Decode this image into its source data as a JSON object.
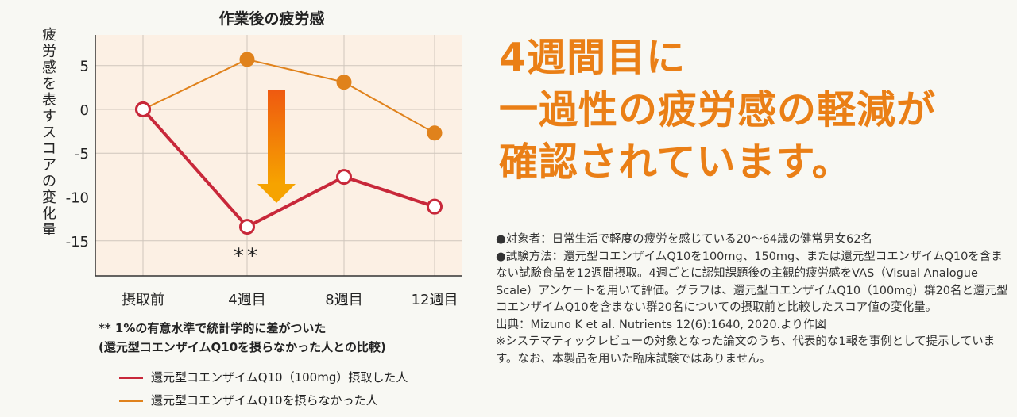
{
  "colors": {
    "accent": "#ea7f16",
    "series_q10": "#c8283a",
    "series_control": "#e0821c",
    "plot_bg": "#fcf0e4",
    "arrow_top": "#ef5a10",
    "arrow_bottom": "#f6a300"
  },
  "chart_data": {
    "type": "line",
    "title": "作業後の疲労感",
    "ylabel": "疲労感を表すスコアの変化量",
    "xlabel": "",
    "categories": [
      "摂取前",
      "4週目",
      "8週目",
      "12週目"
    ],
    "ylim": [
      -19,
      8.5
    ],
    "yticks": [
      5,
      0,
      -5,
      -10,
      -15
    ],
    "grid": true,
    "series": [
      {
        "name": "還元型コエンザイムQ10（100mg）摂取した人",
        "values": [
          0,
          -13.4,
          -7.7,
          -11.1
        ],
        "marker": "hollow"
      },
      {
        "name": "還元型コエンザイムQ10を摂らなかった人",
        "values": [
          0,
          5.7,
          3.1,
          -2.7
        ],
        "marker": "filled"
      }
    ],
    "annotations": [
      {
        "text": "**",
        "category": "4週目"
      }
    ]
  },
  "footnote": {
    "line1": "** 1%の有意水準で統計学的に差がついた",
    "line2": "(還元型コエンザイムQ10を摂らなかった人との比較)"
  },
  "headline": {
    "line1": "4週間目に",
    "line2": "一過性の疲労感の軽減が",
    "line3": "確認されています。"
  },
  "notes": {
    "subjects": "●対象者：日常生活で軽度の疲労を感じている20〜64歳の健常男女62名",
    "method": "●試験方法：還元型コエンザイムQ10を100mg、150mg、または還元型コエンザイムQ10を含まない試験食品を12週間摂取。4週ごとに認知課題後の主観的疲労感をVAS（Visual Analogue Scale）アンケートを用いて評価。グラフは、還元型コエンザイムQ10（100mg）群20名と還元型コエンザイムQ10を含まない群20名についての摂取前と比較したスコア値の変化量。",
    "source": "出典：Mizuno K et al. Nutrients 12(6):1640, 2020.より作図",
    "disclaimer": "※システマティックレビューの対象となった論文のうち、代表的な1報を事例として提示しています。なお、本製品を用いた臨床試験ではありません。"
  }
}
